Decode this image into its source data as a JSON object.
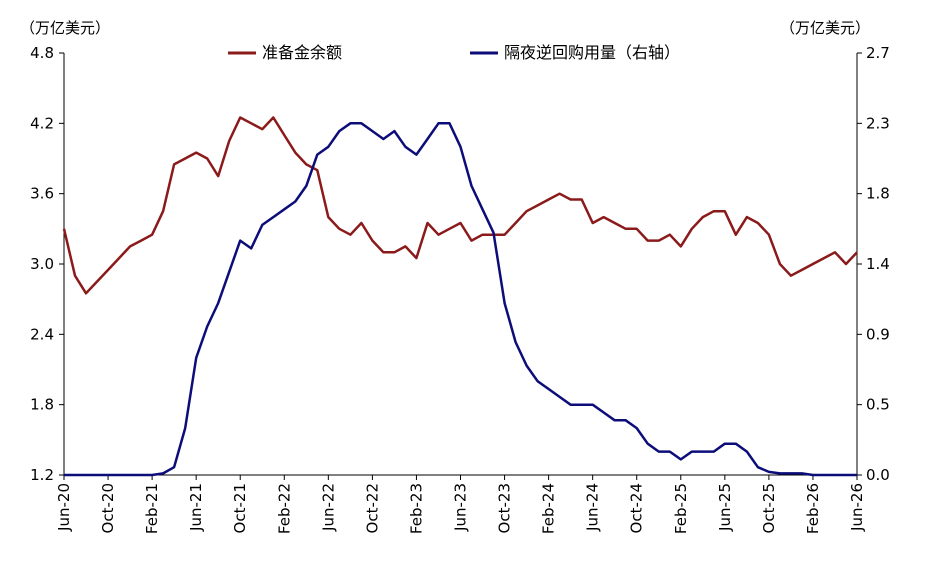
{
  "chart_data": {
    "type": "line",
    "title": "",
    "left_axis": {
      "unit_label": "（万亿美元）",
      "ylim": [
        1.2,
        4.8
      ],
      "ticks": [
        "4.8",
        "4.2",
        "3.6",
        "3.0",
        "2.4",
        "1.8",
        "1.2"
      ]
    },
    "right_axis": {
      "unit_label": "（万亿美元）",
      "ylim": [
        0.0,
        2.7
      ],
      "ticks": [
        "2.7",
        "2.3",
        "1.8",
        "1.4",
        "0.9",
        "0.5",
        "0.0"
      ]
    },
    "x_ticks": [
      "Jun-20",
      "Oct-20",
      "Feb-21",
      "Jun-21",
      "Oct-21",
      "Feb-22",
      "Jun-22",
      "Oct-22",
      "Feb-23",
      "Jun-23",
      "Oct-23",
      "Feb-24",
      "Jun-24",
      "Oct-24",
      "Feb-25",
      "Jun-25",
      "Oct-25",
      "Feb-26",
      "Jun-26"
    ],
    "x_range": [
      "2020-06",
      "2026-06"
    ],
    "legend_placement": "top-center",
    "series": [
      {
        "name": "准备金余额",
        "axis": "left",
        "color": "#8B1A1A",
        "x": [
          "2020-06",
          "2020-07",
          "2020-08",
          "2020-09",
          "2020-10",
          "2020-11",
          "2020-12",
          "2021-01",
          "2021-02",
          "2021-03",
          "2021-04",
          "2021-05",
          "2021-06",
          "2021-07",
          "2021-08",
          "2021-09",
          "2021-10",
          "2021-11",
          "2021-12",
          "2022-01",
          "2022-02",
          "2022-03",
          "2022-04",
          "2022-05",
          "2022-06",
          "2022-07",
          "2022-08",
          "2022-09",
          "2022-10",
          "2022-11",
          "2022-12",
          "2023-01",
          "2023-02",
          "2023-03",
          "2023-04",
          "2023-05",
          "2023-06",
          "2023-07",
          "2023-08",
          "2023-09",
          "2023-10",
          "2023-11",
          "2023-12",
          "2024-01",
          "2024-02",
          "2024-03",
          "2024-04",
          "2024-05",
          "2024-06",
          "2024-07",
          "2024-08",
          "2024-09",
          "2024-10",
          "2024-11",
          "2024-12",
          "2025-01",
          "2025-02",
          "2025-03",
          "2025-04",
          "2025-05",
          "2025-06",
          "2025-07",
          "2025-08",
          "2025-09",
          "2025-10",
          "2025-11",
          "2025-12",
          "2026-01",
          "2026-02",
          "2026-03",
          "2026-04",
          "2026-05",
          "2026-06"
        ],
        "values": [
          3.3,
          2.9,
          2.75,
          2.85,
          2.95,
          3.05,
          3.15,
          3.2,
          3.25,
          3.45,
          3.85,
          3.9,
          3.95,
          3.9,
          3.75,
          4.05,
          4.25,
          4.2,
          4.15,
          4.25,
          4.1,
          3.95,
          3.85,
          3.8,
          3.4,
          3.3,
          3.25,
          3.35,
          3.2,
          3.1,
          3.1,
          3.15,
          3.05,
          3.35,
          3.25,
          3.3,
          3.35,
          3.2,
          3.25,
          3.25,
          3.25,
          3.35,
          3.45,
          3.5,
          3.55,
          3.6,
          3.55,
          3.55,
          3.35,
          3.4,
          3.35,
          3.3,
          3.3,
          3.2,
          3.2,
          3.25,
          3.15,
          3.3,
          3.4,
          3.45,
          3.45,
          3.25,
          3.4,
          3.35,
          3.25,
          3.0,
          2.9,
          2.95,
          3.0,
          3.05,
          3.1,
          3.0,
          3.1
        ]
      },
      {
        "name": "隔夜逆回购用量（右轴）",
        "axis": "right",
        "color": "#0D0D7A",
        "x": [
          "2020-06",
          "2020-07",
          "2020-08",
          "2020-09",
          "2020-10",
          "2020-11",
          "2020-12",
          "2021-01",
          "2021-02",
          "2021-03",
          "2021-04",
          "2021-05",
          "2021-06",
          "2021-07",
          "2021-08",
          "2021-09",
          "2021-10",
          "2021-11",
          "2021-12",
          "2022-01",
          "2022-02",
          "2022-03",
          "2022-04",
          "2022-05",
          "2022-06",
          "2022-07",
          "2022-08",
          "2022-09",
          "2022-10",
          "2022-11",
          "2022-12",
          "2023-01",
          "2023-02",
          "2023-03",
          "2023-04",
          "2023-05",
          "2023-06",
          "2023-07",
          "2023-08",
          "2023-09",
          "2023-10",
          "2023-11",
          "2023-12",
          "2024-01",
          "2024-02",
          "2024-03",
          "2024-04",
          "2024-05",
          "2024-06",
          "2024-07",
          "2024-08",
          "2024-09",
          "2024-10",
          "2024-11",
          "2024-12",
          "2025-01",
          "2025-02",
          "2025-03",
          "2025-04",
          "2025-05",
          "2025-06",
          "2025-07",
          "2025-08",
          "2025-09",
          "2025-10",
          "2025-11",
          "2025-12",
          "2026-01",
          "2026-02",
          "2026-03",
          "2026-04",
          "2026-05",
          "2026-06"
        ],
        "values": [
          0.0,
          0.0,
          0.0,
          0.0,
          0.0,
          0.0,
          0.0,
          0.0,
          0.0,
          0.01,
          0.05,
          0.3,
          0.75,
          0.95,
          1.1,
          1.3,
          1.5,
          1.45,
          1.6,
          1.65,
          1.7,
          1.75,
          1.85,
          2.05,
          2.1,
          2.2,
          2.25,
          2.25,
          2.2,
          2.15,
          2.2,
          2.1,
          2.05,
          2.15,
          2.25,
          2.25,
          2.1,
          1.85,
          1.7,
          1.55,
          1.1,
          0.85,
          0.7,
          0.6,
          0.55,
          0.5,
          0.45,
          0.45,
          0.45,
          0.4,
          0.35,
          0.35,
          0.3,
          0.2,
          0.15,
          0.15,
          0.1,
          0.15,
          0.15,
          0.15,
          0.2,
          0.2,
          0.15,
          0.05,
          0.02,
          0.01,
          0.01,
          0.01,
          0.0,
          0.0,
          0.0,
          0.0,
          0.0
        ]
      }
    ]
  }
}
